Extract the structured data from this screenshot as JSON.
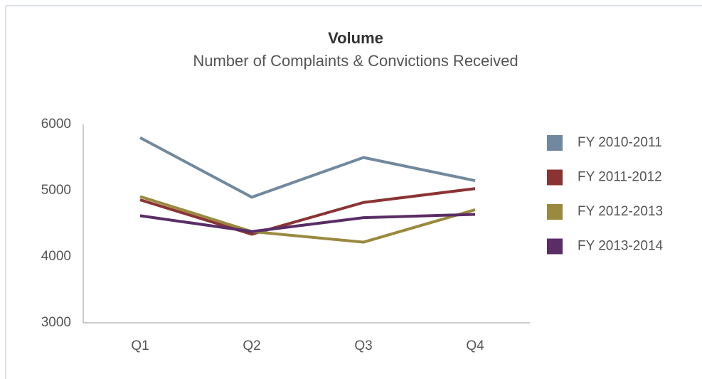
{
  "chart_data": {
    "type": "line",
    "title": "Volume",
    "subtitle": "Number of Complaints & Convictions Received",
    "categories": [
      "Q1",
      "Q2",
      "Q3",
      "Q4"
    ],
    "series": [
      {
        "name": "FY 2010-2011",
        "color": "#71899e",
        "values": [
          5800,
          4900,
          5500,
          5150
        ]
      },
      {
        "name": "FY 2011-2012",
        "color": "#8b3333",
        "values": [
          4860,
          4340,
          4820,
          5030
        ]
      },
      {
        "name": "FY 2012-2013",
        "color": "#9a8a3f",
        "values": [
          4910,
          4380,
          4220,
          4710
        ]
      },
      {
        "name": "FY 2013-2014",
        "color": "#5a2d66",
        "values": [
          4620,
          4380,
          4590,
          4640
        ]
      }
    ],
    "ylim": [
      3000,
      6000
    ],
    "yticks": [
      3000,
      4000,
      5000,
      6000
    ],
    "grid": false,
    "legend": "right"
  }
}
